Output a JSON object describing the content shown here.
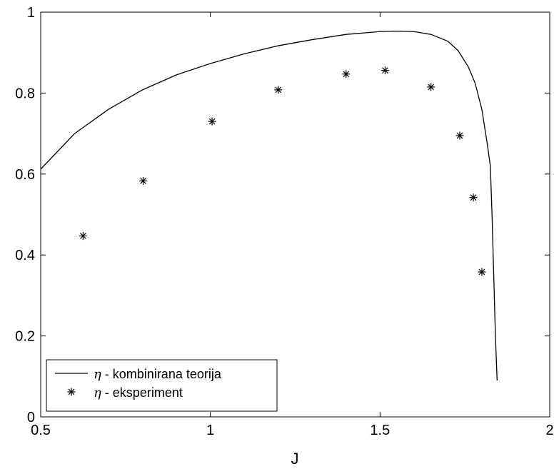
{
  "chart_data": {
    "type": "line",
    "title": "",
    "xlabel": "J",
    "ylabel": "",
    "xlim": [
      0.5,
      2
    ],
    "ylim": [
      0,
      1
    ],
    "xticks": [
      0.5,
      1,
      1.5,
      2
    ],
    "xtick_labels": [
      "0.5",
      "1",
      "1.5",
      "2"
    ],
    "yticks": [
      0,
      0.2,
      0.4,
      0.6,
      0.8,
      1
    ],
    "ytick_labels": [
      "0",
      "0.2",
      "0.4",
      "0.6",
      "0.8",
      "1"
    ],
    "grid": false,
    "legend_position": "bottom-left",
    "series": [
      {
        "name": "η - kombinirana teorija",
        "name_symbol": "η",
        "name_text": " - kombinirana teorija",
        "style": "line",
        "color": "#000000",
        "x": [
          0.5,
          0.6,
          0.7,
          0.8,
          0.9,
          1.0,
          1.1,
          1.2,
          1.3,
          1.4,
          1.5,
          1.55,
          1.6,
          1.65,
          1.7,
          1.73,
          1.76,
          1.78,
          1.8,
          1.815,
          1.825,
          1.83,
          1.835,
          1.84,
          1.845
        ],
        "y": [
          0.612,
          0.7,
          0.76,
          0.808,
          0.845,
          0.873,
          0.897,
          0.917,
          0.932,
          0.945,
          0.952,
          0.953,
          0.952,
          0.945,
          0.928,
          0.905,
          0.865,
          0.825,
          0.76,
          0.68,
          0.62,
          0.5,
          0.35,
          0.2,
          0.09
        ]
      },
      {
        "name": "η - eksperiment",
        "name_symbol": "η",
        "name_text": " - eksperiment",
        "style": "marker",
        "marker": "asterisk",
        "color": "#000000",
        "x": [
          0.625,
          0.802,
          1.005,
          1.2,
          1.4,
          1.515,
          1.65,
          1.735,
          1.775,
          1.8
        ],
        "y": [
          0.447,
          0.583,
          0.73,
          0.808,
          0.847,
          0.856,
          0.815,
          0.695,
          0.542,
          0.358
        ]
      }
    ]
  }
}
